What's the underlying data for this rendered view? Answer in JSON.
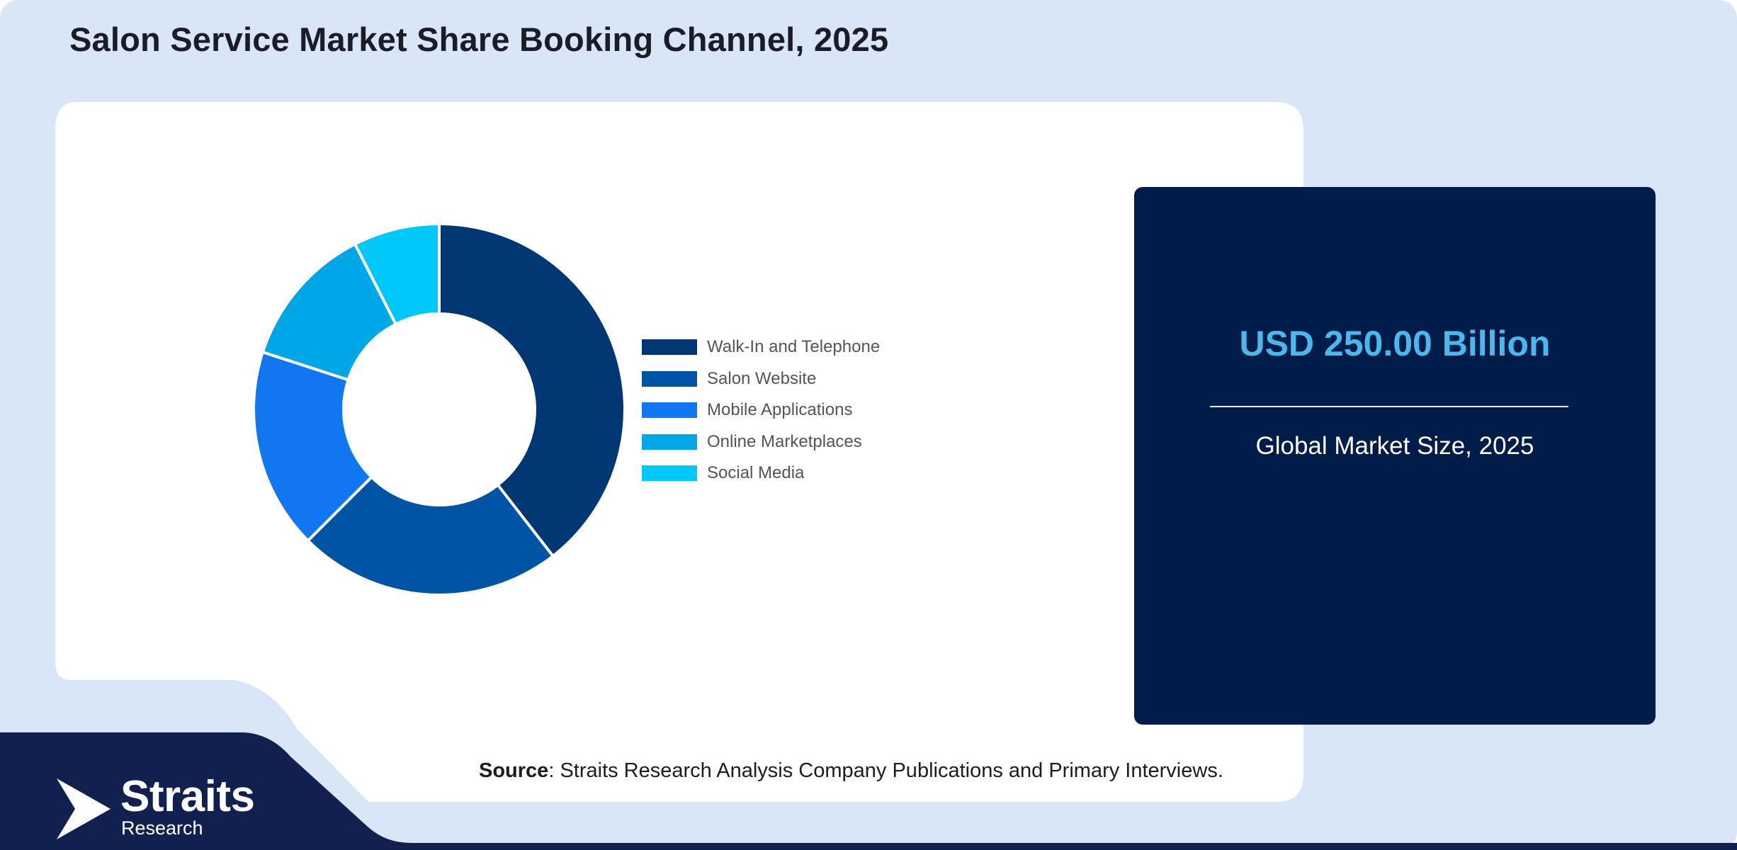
{
  "header": {
    "title": "Salon Service Market Share Booking Channel, 2025"
  },
  "chart_data": {
    "type": "pie",
    "title": "Salon Service Market Share Booking Channel, 2025",
    "donut": true,
    "categories": [
      "Walk-In and Telephone",
      "Salon Website",
      "Mobile Applications",
      "Online Marketplaces",
      "Social Media"
    ],
    "values": [
      39.5,
      23,
      17.5,
      12.5,
      7.5
    ],
    "colors": [
      "#003773",
      "#0054a6",
      "#1177f0",
      "#00a7e6",
      "#00c8fa"
    ],
    "legend_position": "right"
  },
  "kpi": {
    "value": "USD 250.00 Billion",
    "caption": "Global Market Size, 2025",
    "value_color": "#4ab8ec",
    "card_color": "#001d49"
  },
  "source": {
    "label": "Source",
    "text": ": Straits Research Analysis Company Publications and Primary Interviews."
  },
  "logo": {
    "name": "Straits",
    "sub": "Research",
    "icon": "straits-arrow-icon"
  },
  "colors": {
    "background": "#d8e6f8",
    "panel": "#ffffff",
    "footer": "#122050"
  }
}
